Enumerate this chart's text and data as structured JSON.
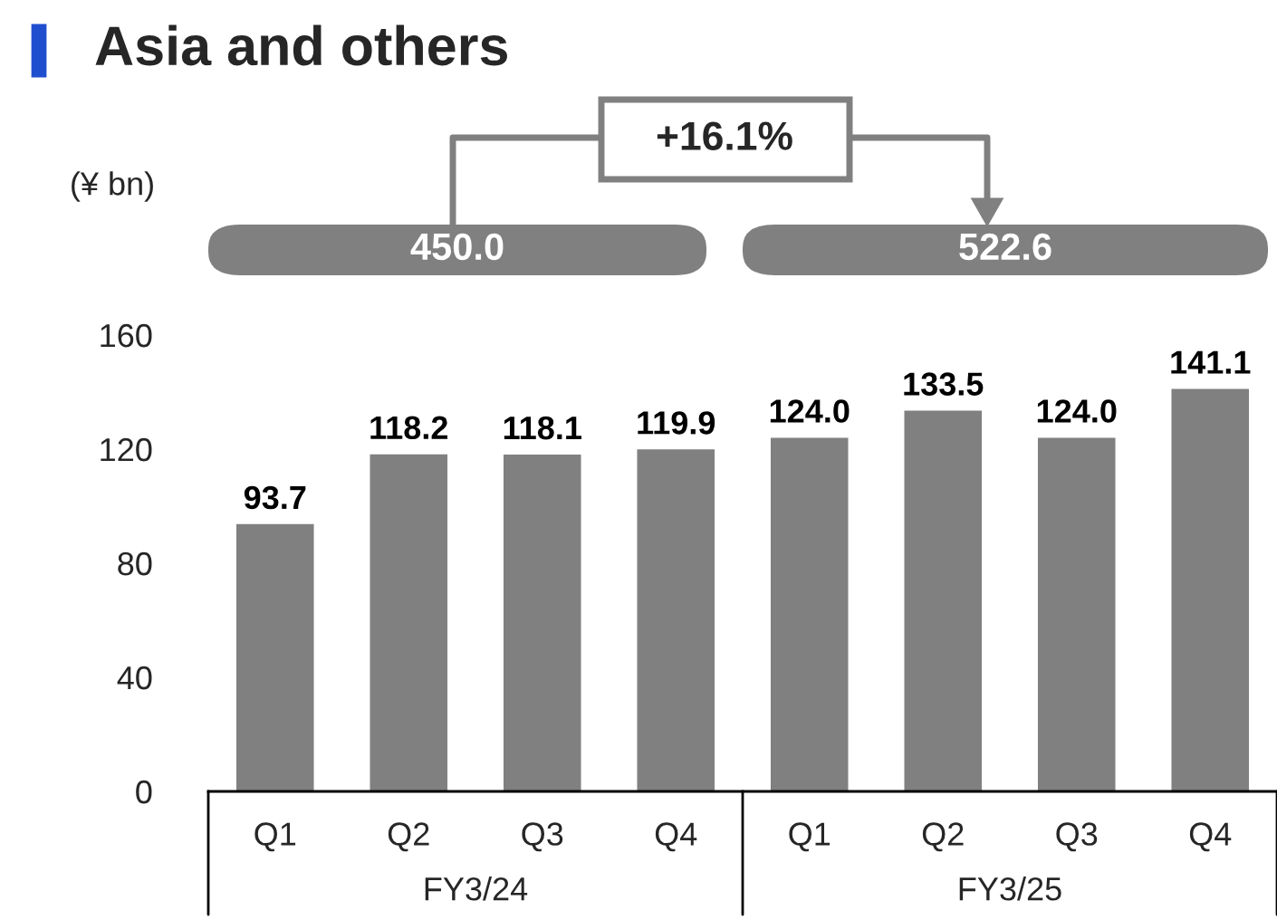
{
  "chart_data": {
    "type": "bar",
    "title": "Asia and others",
    "ylabel": "(¥ bn)",
    "categories": [
      "Q1",
      "Q2",
      "Q3",
      "Q4",
      "Q1",
      "Q2",
      "Q3",
      "Q4"
    ],
    "values": [
      93.7,
      118.2,
      118.1,
      119.9,
      124.0,
      133.5,
      124.0,
      141.1
    ],
    "color": "#808080",
    "value_labels": [
      "93.7",
      "118.2",
      "118.1",
      "119.9",
      "124.0",
      "133.5",
      "124.0",
      "141.1"
    ],
    "ylim": [
      0,
      160
    ],
    "yticks": [
      0,
      40,
      80,
      120,
      160
    ],
    "grid": false,
    "annotations": [
      "450.0",
      "522.6",
      "+16.1%",
      "FY3/24",
      "FY3/25"
    ]
  }
}
